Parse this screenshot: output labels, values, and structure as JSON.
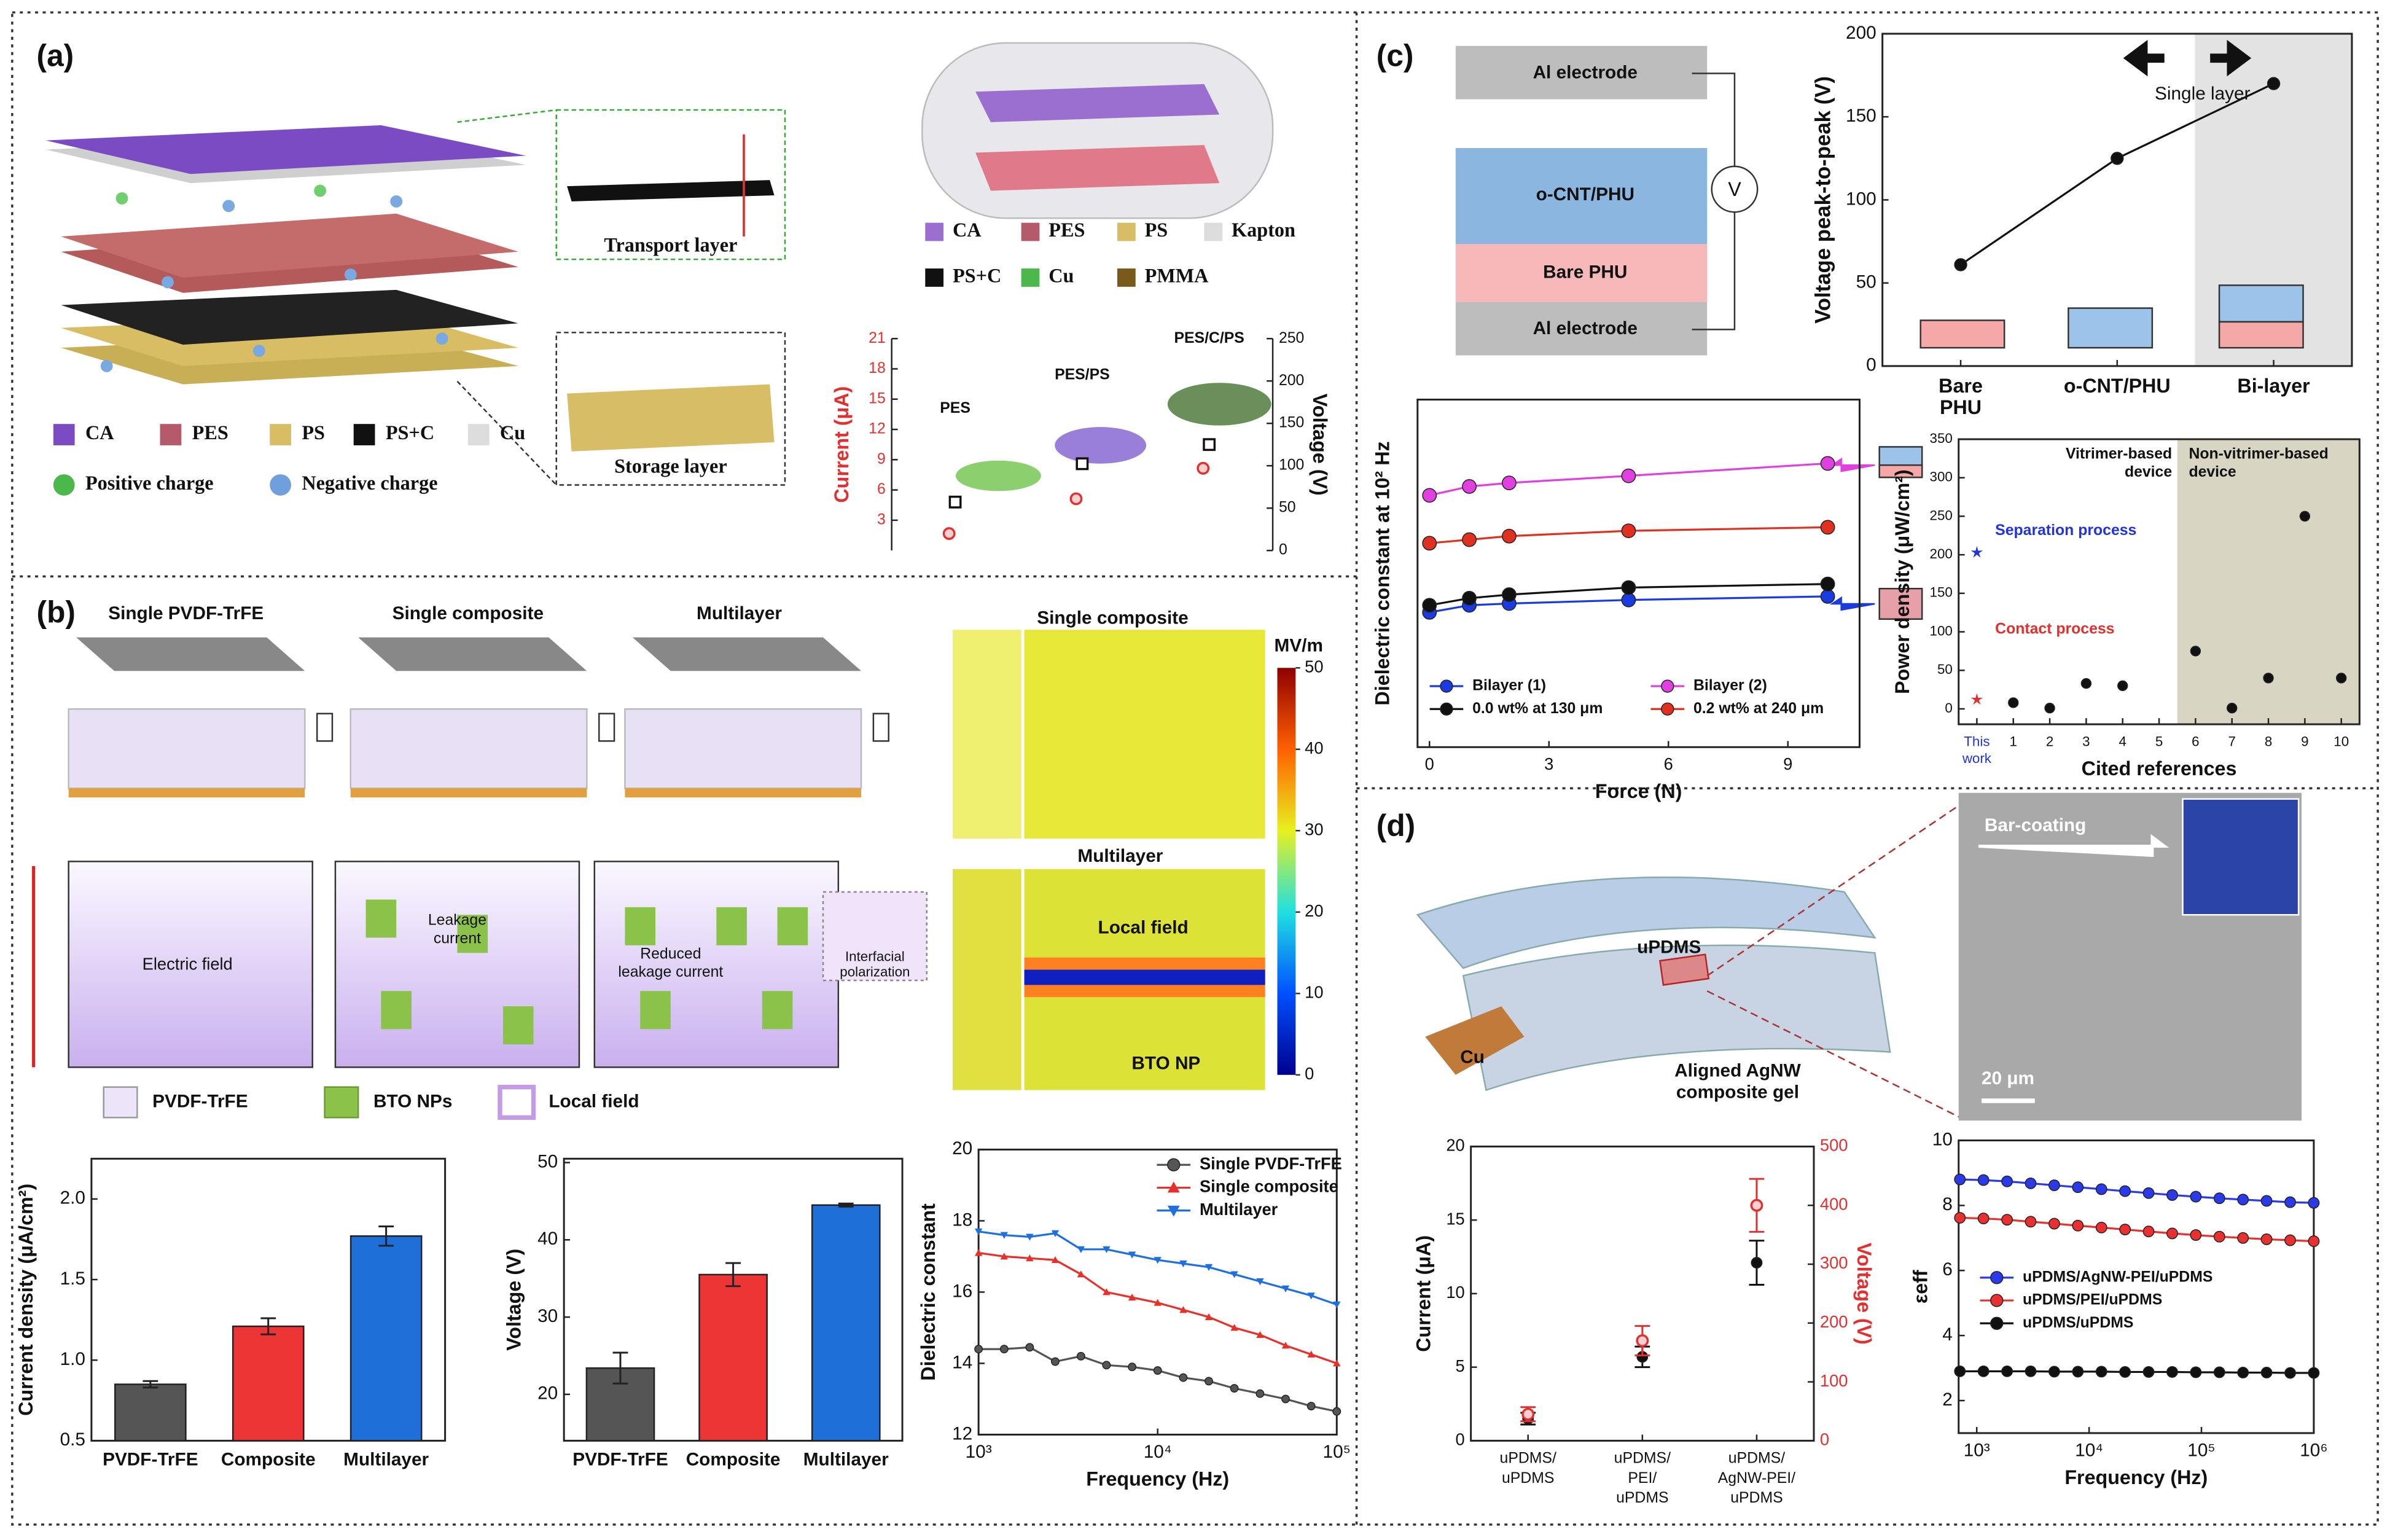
{
  "panels": {
    "a": {
      "label": "(a)",
      "callouts": [
        "Transport layer",
        "Storage layer"
      ],
      "legend": [
        "CA",
        "PES",
        "PS",
        "PS+C",
        "Cu"
      ],
      "charges": [
        "Positive charge",
        "Negative charge"
      ],
      "material_legend": [
        "CA",
        "PES",
        "PS",
        "Kapton",
        "PS+C",
        "Cu",
        "PMMA"
      ]
    },
    "b": {
      "label": "(b)",
      "schemes": [
        "Single PVDF-TrFE",
        "Single composite",
        "Multilayer"
      ],
      "notes": {
        "field": "Electric field",
        "leakage": [
          "Leakage",
          "current"
        ],
        "reduced": [
          "Reduced",
          "leakage current"
        ],
        "interfacial": [
          "Interfacial",
          "polarization"
        ]
      },
      "legend": [
        "PVDF-TrFE",
        "BTO NPs",
        "Local field"
      ],
      "simulation": {
        "titles": [
          "Single composite",
          "Multilayer"
        ],
        "labels": [
          "Local field",
          "BTO NP"
        ],
        "unit": "MV/m",
        "colorbar": {
          "clim": [
            0,
            50
          ],
          "ticks": [
            0,
            10,
            20,
            30,
            40,
            50
          ]
        }
      }
    },
    "c": {
      "label": "(c)",
      "stack": [
        "Al electrode",
        "o-CNT/PHU",
        "Bare PHU",
        "Al electrode"
      ],
      "meter": "V",
      "arrow_note": "Single layer",
      "regions": [
        [
          "Vitrimer-based",
          "device"
        ],
        [
          "Non-vitrimer-based",
          "device"
        ]
      ]
    },
    "d": {
      "label": "(d)",
      "device": [
        "uPDMS",
        "Cu",
        [
          "Aligned AgNW",
          "composite gel"
        ]
      ],
      "micrograph": [
        "Bar-coating",
        "20 μm"
      ]
    }
  },
  "chart_data": [
    {
      "type": "scatter",
      "categories": [
        "PES",
        "PES/PS",
        "PES/C/PS"
      ],
      "ylabel": "Current (μA)",
      "y_color": "#e03030",
      "y2label": "Voltage (V)",
      "ylim": [
        0,
        21
      ],
      "yticks": [
        3,
        6,
        9,
        12,
        15,
        18,
        21
      ],
      "y2lim": [
        0,
        250
      ],
      "y2ticks": [
        0,
        50,
        100,
        150,
        200,
        250
      ],
      "series": [
        {
          "color": "#111111",
          "marker": "square",
          "values": [
            4.8,
            8.6,
            10.5
          ]
        },
        {
          "color": "#e03030",
          "marker": "circle-open",
          "axis": "y2",
          "values": [
            20,
            61,
            97
          ]
        }
      ]
    },
    {
      "type": "bar",
      "categories": [
        "PVDF-TrFE",
        "Composite",
        "Multilayer"
      ],
      "ylabel": "Current density (μA/cm²)",
      "values": [
        0.85,
        1.21,
        1.77
      ],
      "errors": [
        0.02,
        0.05,
        0.06
      ],
      "colors": [
        "#555555",
        "#ee3535",
        "#1f6fd8"
      ],
      "ylim": [
        0.5,
        2.25
      ],
      "yticks": [
        {
          "value": 0.5,
          "label": "0.5"
        },
        {
          "value": 1.0,
          "label": "1.0"
        },
        {
          "value": 1.5,
          "label": "1.5"
        },
        {
          "value": 2.0,
          "label": "2.0"
        }
      ]
    },
    {
      "type": "bar",
      "categories": [
        "PVDF-TrFE",
        "Composite",
        "Multilayer"
      ],
      "ylabel": "Voltage (V)",
      "values": [
        23.4,
        35.5,
        44.5
      ],
      "errors": [
        2.0,
        1.5,
        0.2
      ],
      "colors": [
        "#555555",
        "#ee3535",
        "#1f6fd8"
      ],
      "ylim": [
        14,
        50.5
      ],
      "yticks": [
        20,
        30,
        40,
        50
      ]
    },
    {
      "type": "line",
      "xlabel": "Frequency (Hz)",
      "ylabel": "Dielectric constant",
      "xscale": "log",
      "legend": "upper right",
      "x": [
        1000,
        1390,
        1930,
        2680,
        3730,
        5180,
        7200,
        10000,
        13900,
        19300,
        26800,
        37300,
        51800,
        72000,
        100000
      ],
      "xlim": [
        1000,
        100000
      ],
      "xticks": [
        {
          "value": 1000,
          "label": "10³"
        },
        {
          "value": 10000,
          "label": "10⁴"
        },
        {
          "value": 100000,
          "label": "10⁵"
        }
      ],
      "ylim": [
        12,
        20
      ],
      "yticks": [
        12,
        14,
        16,
        18,
        20
      ],
      "series": [
        {
          "name": "Single PVDF-TrFE",
          "color": "#555555",
          "marker": "circle",
          "values": [
            14.4,
            14.4,
            14.45,
            14.05,
            14.2,
            13.95,
            13.9,
            13.8,
            13.6,
            13.5,
            13.3,
            13.15,
            13.0,
            12.8,
            12.65
          ]
        },
        {
          "name": "Single composite",
          "color": "#e8302a",
          "marker": "tri-up",
          "values": [
            17.1,
            17.0,
            16.95,
            16.9,
            16.5,
            16.0,
            15.85,
            15.7,
            15.5,
            15.3,
            15.0,
            14.8,
            14.5,
            14.25,
            14.0
          ]
        },
        {
          "name": "Multilayer",
          "color": "#1e6fe0",
          "marker": "tri-down",
          "values": [
            17.7,
            17.6,
            17.55,
            17.65,
            17.2,
            17.2,
            17.05,
            16.9,
            16.8,
            16.7,
            16.5,
            16.3,
            16.1,
            15.9,
            15.65
          ]
        }
      ]
    },
    {
      "type": "line",
      "categories": [
        [
          "Bare",
          "PHU"
        ],
        "o-CNT/PHU",
        "Bi-layer"
      ],
      "ylabel": "Voltage peak-to-peak (V)",
      "ylim": [
        0,
        200
      ],
      "yticks": [
        0,
        50,
        100,
        150,
        200
      ],
      "series": [
        {
          "color": "#111111",
          "marker": "circle",
          "values": [
            61,
            125,
            170
          ]
        }
      ]
    },
    {
      "type": "line",
      "xlabel": "Force (N)",
      "ylabel": "Dielectric constant at 10² Hz",
      "legend": "lower center",
      "x": [
        0,
        1,
        2,
        5,
        10
      ],
      "xlim": [
        -0.3,
        10.8
      ],
      "xticks": [
        0,
        3,
        6,
        9
      ],
      "ylim": [
        -0.8,
        9
      ],
      "series": [
        {
          "name": "Bilayer (1)",
          "color": "#1a3be0",
          "marker": "circle",
          "values": [
            3.0,
            3.2,
            3.25,
            3.35,
            3.45
          ]
        },
        {
          "name": "Bilayer (2)",
          "color": "#e040e0",
          "marker": "circle",
          "values": [
            6.3,
            6.55,
            6.65,
            6.85,
            7.2
          ]
        },
        {
          "name": "0.0 wt% at 130 μm",
          "color": "#111111",
          "marker": "circle",
          "values": [
            3.2,
            3.4,
            3.5,
            3.7,
            3.8
          ]
        },
        {
          "name": "0.2 wt% at 240 μm",
          "color": "#e03020",
          "marker": "circle",
          "values": [
            4.95,
            5.05,
            5.15,
            5.3,
            5.4
          ]
        }
      ]
    },
    {
      "type": "scatter",
      "categories": [
        [
          "This",
          "work"
        ],
        "1",
        "2",
        "3",
        "4",
        "5",
        "6",
        "7",
        "8",
        "9",
        "10"
      ],
      "xlabel": "Cited references",
      "ylabel": "Power density (μW/cm²)",
      "legend": "inline",
      "ylim": [
        -20,
        350
      ],
      "yticks": [
        0,
        50,
        100,
        150,
        200,
        250,
        300,
        350
      ],
      "series": [
        {
          "name": "Separation process",
          "color": "#2233dd",
          "marker": "star",
          "values": [
            203,
            null,
            null,
            null,
            null,
            null,
            null,
            null,
            null,
            null,
            null
          ]
        },
        {
          "name": "Contact process",
          "color": "#e03030",
          "marker": "star",
          "values": [
            12,
            null,
            null,
            null,
            null,
            null,
            null,
            null,
            null,
            null,
            null
          ]
        },
        {
          "color": "#111111",
          "marker": "circle",
          "values": [
            null,
            8,
            1,
            33,
            30,
            null,
            75,
            1,
            40,
            250,
            40
          ]
        }
      ]
    },
    {
      "type": "scatter",
      "categories": [
        [
          "uPDMS/",
          "uPDMS"
        ],
        [
          "uPDMS/",
          "PEI/",
          "uPDMS"
        ],
        [
          "uPDMS/",
          "AgNW-PEI/",
          "uPDMS"
        ]
      ],
      "ylabel": "Current (μA)",
      "y2label": "Voltage (V)",
      "y2_color": "#e03030",
      "ylim": [
        0,
        20
      ],
      "yticks": [
        0,
        5,
        10,
        15,
        20
      ],
      "y2lim": [
        0,
        500
      ],
      "y2ticks": [
        0,
        100,
        200,
        300,
        400,
        500
      ],
      "series": [
        {
          "color": "#111111",
          "marker": "circle",
          "values": [
            1.5,
            5.7,
            12.1
          ],
          "errors": [
            0.4,
            0.7,
            1.5
          ]
        },
        {
          "color": "#e03030",
          "marker": "circle-open",
          "axis": "y2",
          "values": [
            45,
            170,
            400
          ],
          "errors": [
            12,
            25,
            45
          ]
        }
      ]
    },
    {
      "type": "line",
      "xlabel": "Frequency (Hz)",
      "ylabel": "εeff",
      "xscale": "log",
      "legend": "center",
      "x": [
        708,
        1148,
        1862,
        3020,
        4898,
        7943,
        12882,
        20893,
        33884,
        54954,
        89125,
        144544,
        234423,
        380189,
        616595,
        1000000
      ],
      "xlim": [
        690,
        1000000
      ],
      "xticks": [
        {
          "value": 1000,
          "label": "10³"
        },
        {
          "value": 10000,
          "label": "10⁴"
        },
        {
          "value": 100000,
          "label": "10⁵"
        },
        {
          "value": 1000000,
          "label": "10⁶"
        }
      ],
      "ylim": [
        1,
        10
      ],
      "yticks": [
        2,
        4,
        6,
        8,
        10
      ],
      "series": [
        {
          "name": "uPDMS/AgNW-PEI/uPDMS",
          "color": "#2a3ae8",
          "marker": "circle",
          "values": [
            8.8,
            8.78,
            8.74,
            8.68,
            8.62,
            8.56,
            8.5,
            8.44,
            8.38,
            8.32,
            8.27,
            8.22,
            8.18,
            8.14,
            8.1,
            8.08
          ]
        },
        {
          "name": "uPDMS/PEI/uPDMS",
          "color": "#e83030",
          "marker": "circle",
          "values": [
            7.62,
            7.6,
            7.56,
            7.5,
            7.44,
            7.38,
            7.32,
            7.26,
            7.2,
            7.14,
            7.09,
            7.04,
            7.0,
            6.96,
            6.93,
            6.9
          ]
        },
        {
          "name": "uPDMS/uPDMS",
          "color": "#111111",
          "marker": "circle",
          "values": [
            2.9,
            2.9,
            2.9,
            2.9,
            2.89,
            2.89,
            2.89,
            2.88,
            2.88,
            2.88,
            2.87,
            2.87,
            2.86,
            2.86,
            2.85,
            2.85
          ]
        }
      ]
    }
  ]
}
